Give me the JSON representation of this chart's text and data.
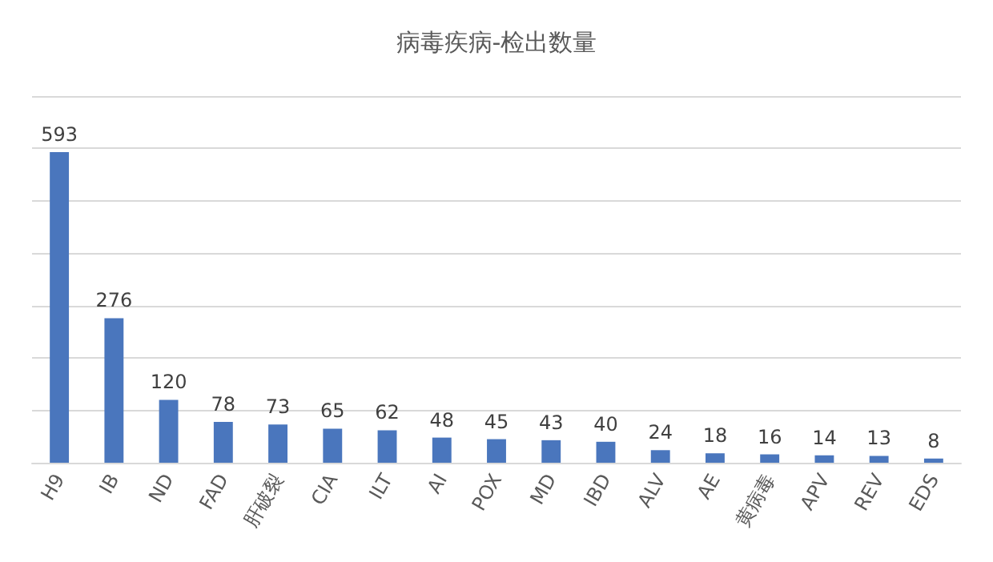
{
  "chart_data": {
    "type": "bar",
    "title": "病毒疾病-检出数量",
    "categories": [
      "H9",
      "IB",
      "ND",
      "FAD",
      "肝破裂",
      "CIA",
      "ILT",
      "AI",
      "POX",
      "MD",
      "IBD",
      "ALV",
      "AE",
      "黄病毒",
      "APV",
      "REV",
      "EDS"
    ],
    "values": [
      593,
      276,
      120,
      78,
      73,
      65,
      62,
      48,
      45,
      43,
      40,
      24,
      18,
      16,
      14,
      13,
      8
    ],
    "color": "#4a76bd",
    "ylim": [
      0,
      700
    ],
    "yticks": [
      {
        "value": 0,
        "label": null
      },
      {
        "value": 100,
        "label": null
      },
      {
        "value": 200,
        "label": null
      },
      {
        "value": 300,
        "label": null
      },
      {
        "value": 400,
        "label": null
      },
      {
        "value": 500,
        "label": null
      },
      {
        "value": 600,
        "label": null
      },
      {
        "value": 700,
        "label": null
      }
    ],
    "grid": "y",
    "data_labels": true,
    "tick_labels": "x"
  }
}
